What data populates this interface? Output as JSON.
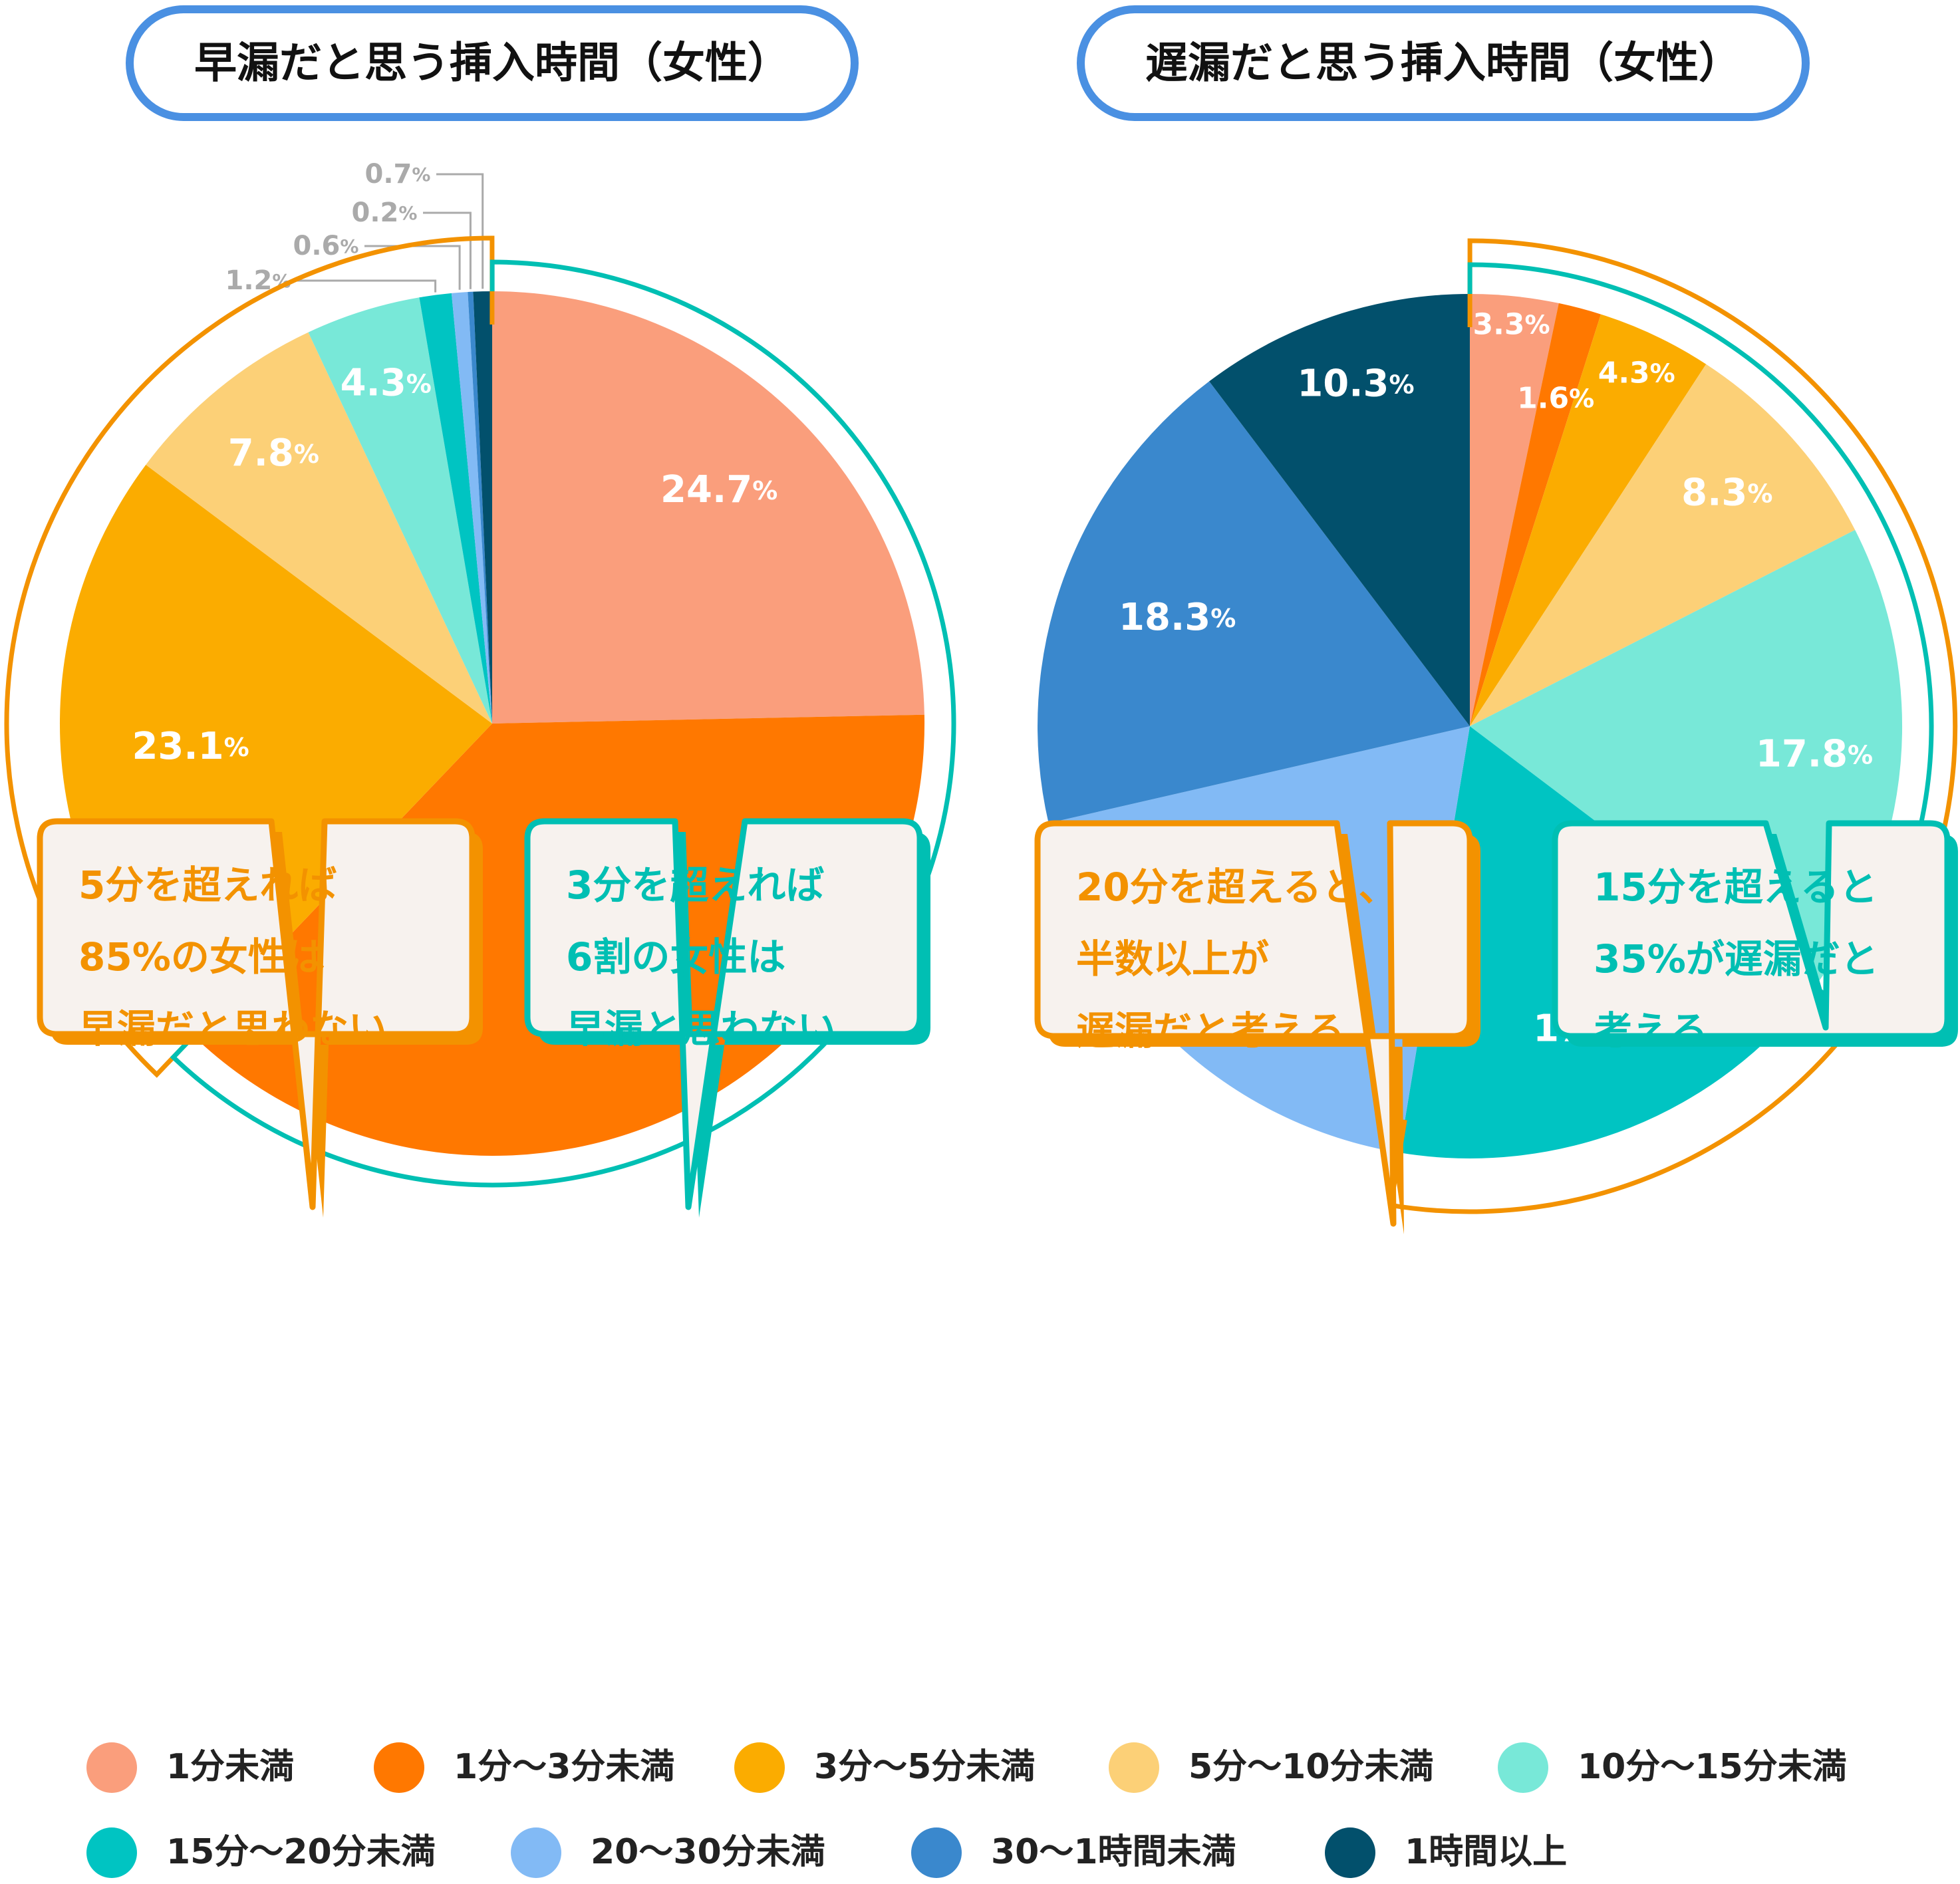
{
  "chart_data": [
    {
      "type": "pie",
      "title": "早漏だと思う挿入時間（女性）",
      "slices": [
        {
          "category": "1分未満",
          "value": 24.7,
          "label": "24.7%"
        },
        {
          "category": "1分～3分未満",
          "value": 37.5,
          "label": "37.5%"
        },
        {
          "category": "3分～5分未満",
          "value": 23.1,
          "label": "23.1%"
        },
        {
          "category": "5分～10分未満",
          "value": 7.8,
          "label": "7.8%"
        },
        {
          "category": "10分～15分未満",
          "value": 4.3,
          "label": "4.3%"
        },
        {
          "category": "15分～20分未満",
          "value": 1.2,
          "label": "1.2%"
        },
        {
          "category": "20～30分未満",
          "value": 0.6,
          "label": "0.6%"
        },
        {
          "category": "30～1時間未満",
          "value": 0.2,
          "label": "0.2%"
        },
        {
          "category": "1時間以上",
          "value": 0.7,
          "label": "0.7%"
        }
      ],
      "annotations": [
        {
          "lines": [
            "5分を超えれば",
            "85%の女性は",
            "早漏だと思わない"
          ],
          "color": "#f39200"
        },
        {
          "lines": [
            "3分を超えれば",
            "6割の女性は",
            "早漏と思わない"
          ],
          "color": "#00bfb3"
        }
      ]
    },
    {
      "type": "pie",
      "title": "遅漏だと思う挿入時間（女性）",
      "slices": [
        {
          "category": "1分未満",
          "value": 3.3,
          "label": "3.3%"
        },
        {
          "category": "1分～3分未満",
          "value": 1.6,
          "label": "1.6%"
        },
        {
          "category": "3分～5分未満",
          "value": 4.3,
          "label": "4.3%"
        },
        {
          "category": "5分～10分未満",
          "value": 8.3,
          "label": "8.3%"
        },
        {
          "category": "10分～15分未満",
          "value": 17.8,
          "label": "17.8%"
        },
        {
          "category": "15分～20分未満",
          "value": 17.3,
          "label": "17.3%"
        },
        {
          "category": "20～30分未満",
          "value": 18.8,
          "label": "18.8%"
        },
        {
          "category": "30～1時間未満",
          "value": 18.3,
          "label": "18.3%"
        },
        {
          "category": "1時間以上",
          "value": 10.3,
          "label": "10.3%"
        }
      ],
      "annotations": [
        {
          "lines": [
            "20分を超えると、",
            "半数以上が",
            "遅漏だと考える"
          ],
          "color": "#f39200"
        },
        {
          "lines": [
            "15分を超えると",
            "35%が遅漏だと",
            "考える"
          ],
          "color": "#00bfb3"
        }
      ]
    }
  ],
  "legend": [
    {
      "label": "1分未満",
      "color": "#fa9e7c"
    },
    {
      "label": "1分～3分未満",
      "color": "#ff7800"
    },
    {
      "label": "3分～5分未満",
      "color": "#fbac00"
    },
    {
      "label": "5分～10分未満",
      "color": "#fcd077"
    },
    {
      "label": "10分～15分未満",
      "color": "#78e8d8"
    },
    {
      "label": "15分～20分未満",
      "color": "#00c4c2"
    },
    {
      "label": "20～30分未満",
      "color": "#82baf5"
    },
    {
      "label": "30～1時間未満",
      "color": "#3a88cd"
    },
    {
      "label": "1時間以上",
      "color": "#02506c"
    }
  ],
  "colors": {
    "title_border": "#4a90e2",
    "orange_outline": "#f39200",
    "teal_outline": "#00bfb3",
    "callout_bg": "#f7f2ee",
    "small_label": "#aaaaaa"
  }
}
